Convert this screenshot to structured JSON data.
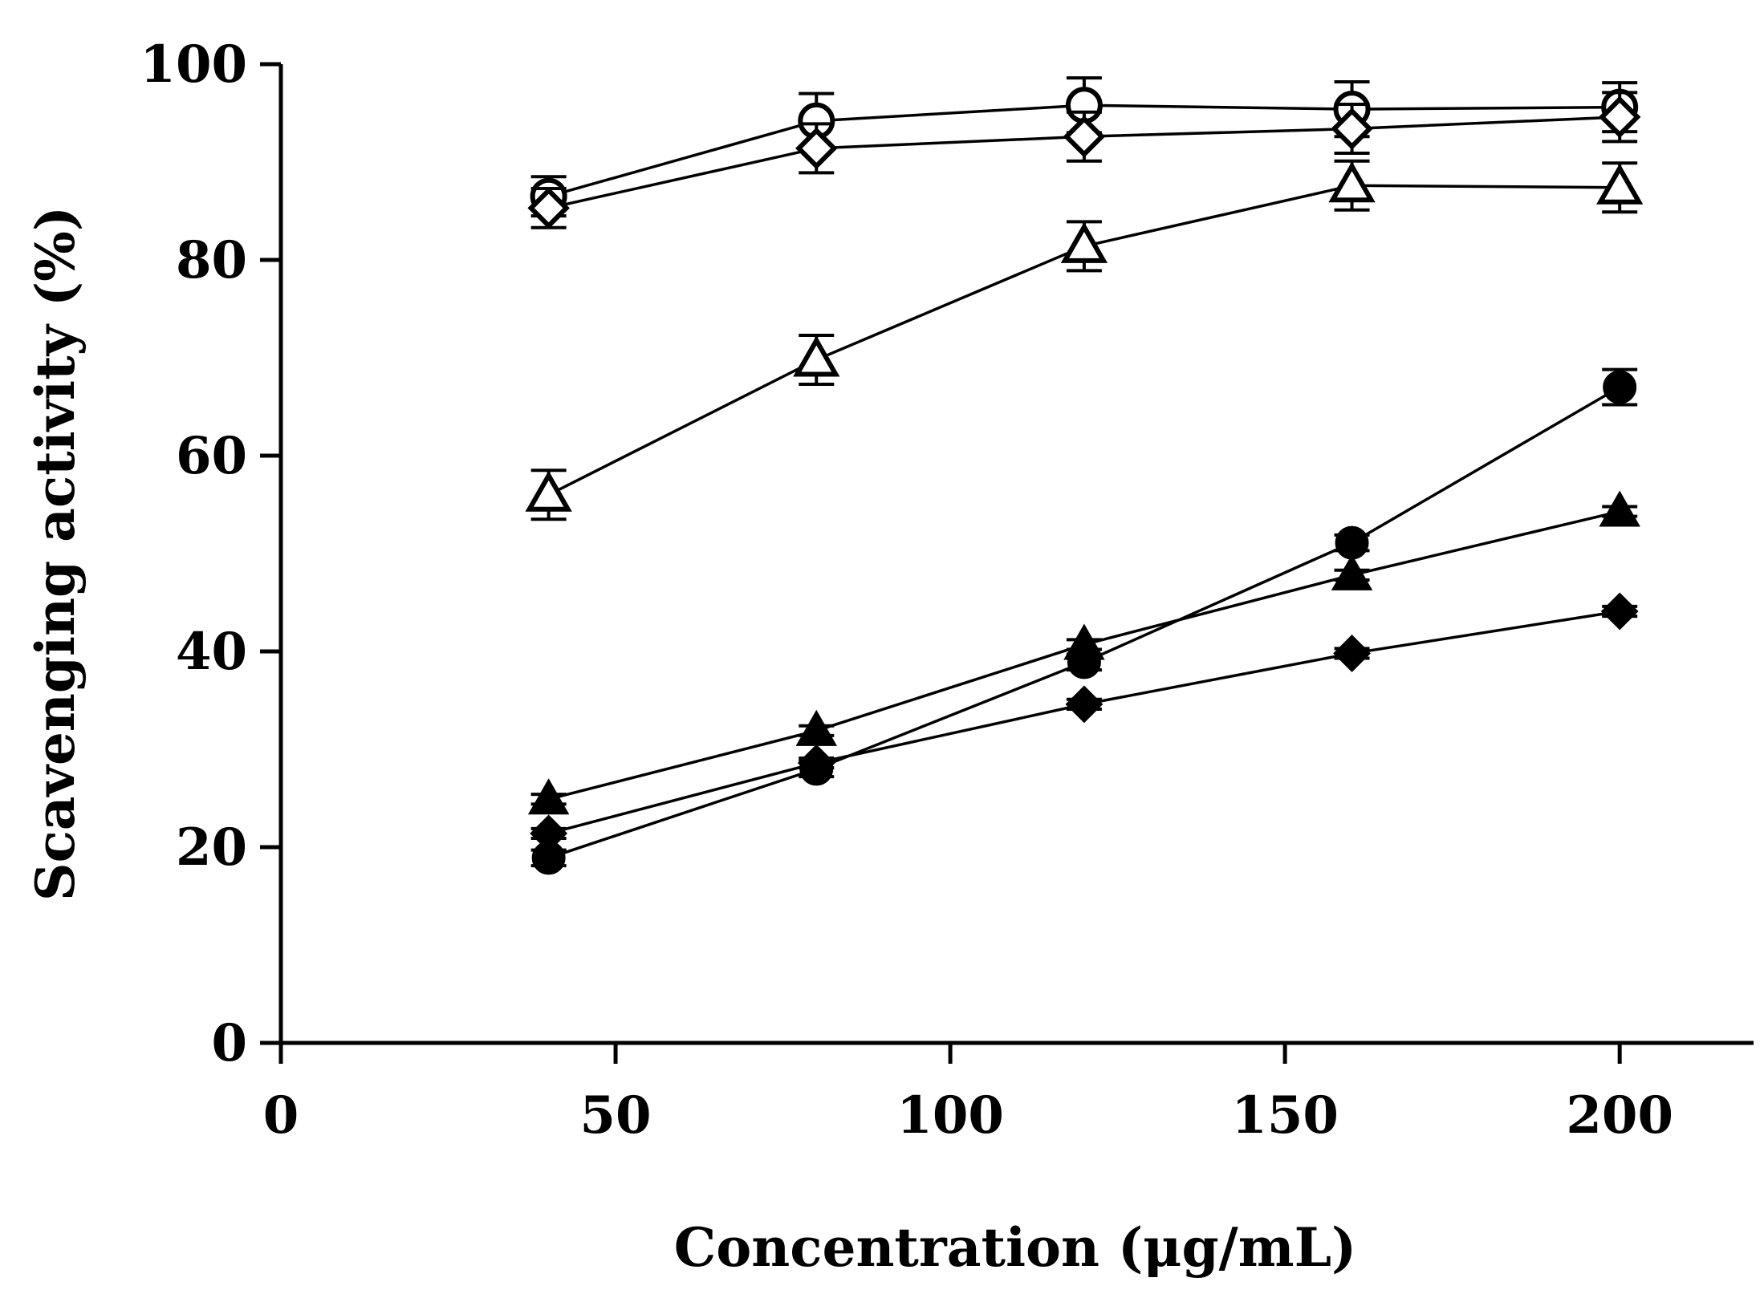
{
  "chart_data": {
    "type": "line",
    "title": "",
    "xlabel": "Concentration (μg/mL)",
    "ylabel": "Scavenging activity (%)",
    "xlim": [
      0,
      220
    ],
    "ylim": [
      0,
      100
    ],
    "xticks": [
      0,
      50,
      100,
      150,
      200
    ],
    "yticks": [
      0,
      20,
      40,
      60,
      80,
      100
    ],
    "x": [
      40,
      80,
      120,
      160,
      200
    ],
    "series": [
      {
        "name": "open-circle",
        "marker": "circle",
        "filled": false,
        "values": [
          86.5,
          94.2,
          95.8,
          95.4,
          95.6
        ],
        "errors": [
          2.0,
          2.8,
          2.8,
          2.8,
          2.5
        ]
      },
      {
        "name": "open-diamond",
        "marker": "diamond",
        "filled": false,
        "values": [
          85.3,
          91.4,
          92.6,
          93.4,
          94.6
        ],
        "errors": [
          2.0,
          2.5,
          2.5,
          2.5,
          2.5
        ]
      },
      {
        "name": "open-triangle",
        "marker": "triangle",
        "filled": false,
        "values": [
          56.0,
          69.8,
          81.4,
          87.6,
          87.4
        ],
        "errors": [
          2.5,
          2.5,
          2.5,
          2.5,
          2.5
        ]
      },
      {
        "name": "filled-circle",
        "marker": "circle",
        "filled": true,
        "values": [
          18.9,
          28.0,
          38.9,
          51.1,
          67.0
        ],
        "errors": [
          0.8,
          0.8,
          0.8,
          0.8,
          1.8
        ]
      },
      {
        "name": "filled-triangle",
        "marker": "triangle",
        "filled": true,
        "values": [
          24.9,
          31.9,
          40.7,
          47.8,
          54.3
        ],
        "errors": [
          0.5,
          0.5,
          0.5,
          0.5,
          0.5
        ]
      },
      {
        "name": "filled-diamond",
        "marker": "diamond",
        "filled": true,
        "values": [
          21.4,
          28.6,
          34.6,
          39.8,
          44.1
        ],
        "errors": [
          0.5,
          0.5,
          0.5,
          0.5,
          0.5
        ]
      }
    ]
  }
}
